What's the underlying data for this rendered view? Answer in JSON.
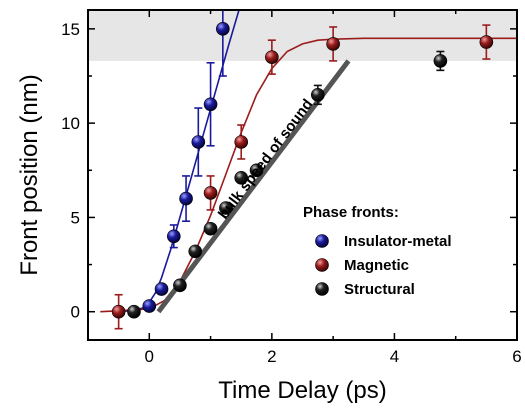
{
  "chart_data": {
    "type": "scatter",
    "title": "",
    "xlabel": "Time Delay (ps)",
    "ylabel": "Front position (nm)",
    "xlim": [
      -1,
      6
    ],
    "ylim": [
      -1.5,
      16
    ],
    "x_ticks": [
      0,
      2,
      4,
      6
    ],
    "y_ticks": [
      0,
      5,
      10,
      15
    ],
    "grid": false,
    "legend": {
      "title": "Phase fronts:",
      "placement": "lower-right"
    },
    "shaded_band": {
      "y_from": 13.3,
      "y_to": 16,
      "color": "#e6e6e6"
    },
    "annotation": "bulk speed of sound",
    "speed_of_sound_line": {
      "x": [
        0.15,
        3.25
      ],
      "y": [
        0,
        13.3
      ],
      "color": "#555555"
    },
    "series": [
      {
        "name": "Insulator-metal",
        "color": "#1a1a9c",
        "points": [
          {
            "x": 0.0,
            "y": 0.3,
            "err": 0.0
          },
          {
            "x": 0.2,
            "y": 1.2,
            "err": 0.0
          },
          {
            "x": 0.4,
            "y": 4.0,
            "err": 0.6
          },
          {
            "x": 0.6,
            "y": 6.0,
            "err": 1.2
          },
          {
            "x": 0.8,
            "y": 9.0,
            "err": 1.8
          },
          {
            "x": 1.0,
            "y": 11.0,
            "err": 2.2
          },
          {
            "x": 1.2,
            "y": 15.0,
            "err": 2.5
          }
        ],
        "fit": {
          "x": [
            -0.55,
            -0.3,
            -0.1,
            0.0,
            0.1,
            0.2,
            0.35,
            0.5,
            0.7,
            0.9,
            1.1,
            1.3,
            1.5
          ],
          "y": [
            0.0,
            0.05,
            0.2,
            0.5,
            1.0,
            1.8,
            3.3,
            5.0,
            7.3,
            9.6,
            11.9,
            14.2,
            16.4
          ]
        }
      },
      {
        "name": "Magnetic",
        "color": "#9b1c1c",
        "points": [
          {
            "x": -0.5,
            "y": 0.0,
            "err": 0.9
          },
          {
            "x": 1.0,
            "y": 6.3,
            "err": 0.9
          },
          {
            "x": 1.5,
            "y": 9.0,
            "err": 0.9
          },
          {
            "x": 2.0,
            "y": 13.5,
            "err": 0.9
          },
          {
            "x": 3.0,
            "y": 14.2,
            "err": 0.9
          },
          {
            "x": 5.5,
            "y": 14.3,
            "err": 0.9
          }
        ],
        "fit": {
          "x": [
            -0.8,
            -0.5,
            0.0,
            0.25,
            0.5,
            0.75,
            1.0,
            1.25,
            1.5,
            1.75,
            2.0,
            2.25,
            2.5,
            2.75,
            3.0,
            3.5,
            4.0,
            5.0,
            6.0
          ],
          "y": [
            0.0,
            0.05,
            0.15,
            0.6,
            1.6,
            3.2,
            5.1,
            7.3,
            9.5,
            11.5,
            12.9,
            13.8,
            14.2,
            14.4,
            14.45,
            14.5,
            14.5,
            14.5,
            14.5
          ]
        }
      },
      {
        "name": "Structural",
        "color": "#111111",
        "points": [
          {
            "x": -0.25,
            "y": 0.0,
            "err": 0.0
          },
          {
            "x": 0.5,
            "y": 1.4,
            "err": 0.0
          },
          {
            "x": 0.75,
            "y": 3.2,
            "err": 0.0
          },
          {
            "x": 1.0,
            "y": 4.4,
            "err": 0.0
          },
          {
            "x": 1.25,
            "y": 5.5,
            "err": 0.0
          },
          {
            "x": 1.5,
            "y": 7.1,
            "err": 0.0
          },
          {
            "x": 1.75,
            "y": 7.5,
            "err": 0.0
          },
          {
            "x": 2.75,
            "y": 11.5,
            "err": 0.5
          },
          {
            "x": 4.75,
            "y": 13.3,
            "err": 0.5
          }
        ]
      }
    ]
  }
}
